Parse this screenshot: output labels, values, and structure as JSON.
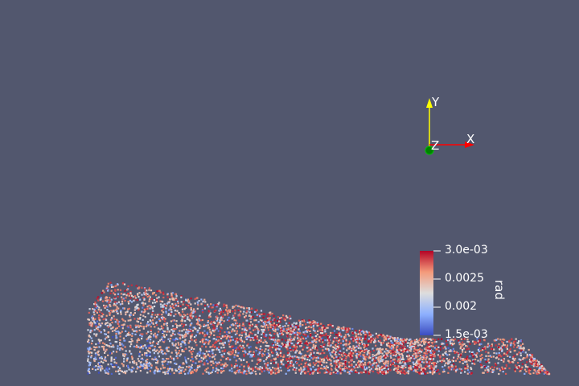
{
  "view": {
    "background": "#52576e"
  },
  "orientation_axes": {
    "x_label": "X",
    "y_label": "Y",
    "z_label": "Z",
    "x_color": "#ff0000",
    "y_color": "#ffff00",
    "z_color": "#00aa00"
  },
  "color_legend": {
    "title": "rad",
    "range": [
      0.0015,
      0.003
    ],
    "tick_labels": [
      "3.0e-03",
      "0.0025",
      "0.002",
      "1.5e-03"
    ],
    "colormap": [
      "#3b4cc0",
      "#8db0fe",
      "#dddddd",
      "#f49a7b",
      "#b40426"
    ]
  },
  "particles": {
    "array_name": "rad",
    "color_by": "rad"
  }
}
